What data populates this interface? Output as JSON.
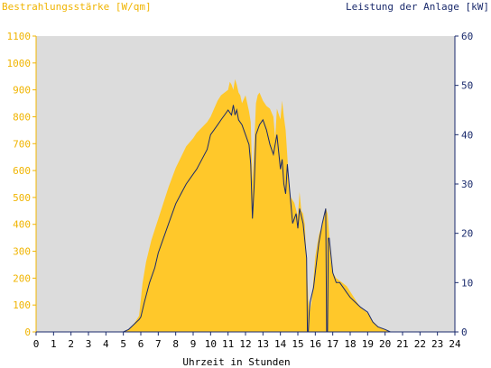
{
  "chart_data": {
    "type": "area",
    "title_left": "Bestrahlungsstärke [W/qm]",
    "title_right": "Leistung der Anlage [kW]",
    "xlabel": "Uhrzeit in Stunden",
    "xlim": [
      0,
      24
    ],
    "x_ticks": [
      0,
      1,
      2,
      3,
      4,
      5,
      6,
      7,
      8,
      9,
      10,
      11,
      12,
      13,
      14,
      15,
      16,
      17,
      18,
      19,
      20,
      21,
      22,
      23,
      24
    ],
    "ylim_left": [
      0,
      1100
    ],
    "y_ticks_left": [
      0,
      100,
      200,
      300,
      400,
      500,
      600,
      700,
      800,
      900,
      1000,
      1100
    ],
    "ylim_right": [
      0,
      60
    ],
    "y_ticks_right": [
      0,
      10,
      20,
      30,
      40,
      50,
      60
    ],
    "grid": false,
    "colors": {
      "plot_bg": "#dcdcdc",
      "irradiance_fill": "#ffc82a",
      "power_line": "#1a2a6c",
      "left_axis": "#f0b400",
      "right_axis": "#1a2a6c",
      "x_axis": "#1a2a6c"
    },
    "series": [
      {
        "axis": "left",
        "kind": "area",
        "x": [
          0,
          5.0,
          5.3,
          5.6,
          5.9,
          6.0,
          6.1,
          6.3,
          6.6,
          7.0,
          7.3,
          7.6,
          8.0,
          8.3,
          8.6,
          9.0,
          9.2,
          9.5,
          9.8,
          10.0,
          10.2,
          10.4,
          10.6,
          10.8,
          11.0,
          11.1,
          11.2,
          11.3,
          11.4,
          11.5,
          11.6,
          11.7,
          11.8,
          12.0,
          12.2,
          12.3,
          12.4,
          12.5,
          12.6,
          12.7,
          12.8,
          13.0,
          13.2,
          13.4,
          13.6,
          13.7,
          13.8,
          14.0,
          14.1,
          14.2,
          14.3,
          14.4,
          14.5,
          14.6,
          14.8,
          15.0,
          15.1,
          15.2,
          15.3,
          15.4,
          15.5,
          15.6,
          15.7,
          15.8,
          15.9,
          16.0,
          16.2,
          16.4,
          16.6,
          16.7,
          16.8,
          16.9,
          17.0,
          17.2,
          17.4,
          17.6,
          17.8,
          18.0,
          18.3,
          18.6,
          19.0,
          19.3,
          19.6,
          20.0,
          20.3,
          24
        ],
        "values": [
          0,
          0,
          10,
          30,
          60,
          120,
          180,
          260,
          340,
          420,
          480,
          540,
          610,
          650,
          690,
          720,
          740,
          760,
          780,
          800,
          830,
          860,
          880,
          890,
          900,
          930,
          920,
          900,
          940,
          920,
          890,
          880,
          850,
          880,
          820,
          780,
          560,
          700,
          850,
          880,
          890,
          860,
          840,
          830,
          800,
          720,
          830,
          790,
          860,
          800,
          750,
          650,
          550,
          500,
          480,
          430,
          520,
          450,
          440,
          400,
          260,
          120,
          80,
          120,
          200,
          280,
          360,
          400,
          460,
          440,
          360,
          260,
          220,
          200,
          190,
          180,
          170,
          150,
          120,
          90,
          70,
          40,
          20,
          8,
          0,
          0
        ]
      },
      {
        "axis": "right",
        "kind": "line",
        "x": [
          0,
          5.0,
          5.3,
          5.6,
          5.9,
          6.0,
          6.2,
          6.5,
          6.8,
          7.0,
          7.3,
          7.6,
          8.0,
          8.3,
          8.6,
          9.0,
          9.2,
          9.5,
          9.8,
          10.0,
          10.2,
          10.4,
          10.6,
          10.8,
          11.0,
          11.2,
          11.3,
          11.4,
          11.5,
          11.6,
          11.8,
          12.0,
          12.2,
          12.3,
          12.4,
          12.5,
          12.6,
          12.8,
          13.0,
          13.2,
          13.4,
          13.6,
          13.8,
          14.0,
          14.1,
          14.2,
          14.3,
          14.4,
          14.5,
          14.7,
          14.9,
          15.0,
          15.1,
          15.3,
          15.5,
          15.55,
          15.6,
          15.65,
          15.7,
          15.9,
          16.0,
          16.2,
          16.4,
          16.6,
          16.65,
          16.7,
          16.75,
          16.8,
          17.0,
          17.2,
          17.4,
          17.6,
          17.8,
          18.0,
          18.3,
          18.6,
          19.0,
          19.3,
          19.6,
          20.0,
          20.3,
          24
        ],
        "values": [
          0,
          0,
          0.5,
          1.5,
          2.5,
          3,
          6,
          10,
          13,
          16,
          19,
          22,
          26,
          28,
          30,
          32,
          33,
          35,
          37,
          40,
          41,
          42,
          43,
          44,
          45,
          44,
          46,
          44,
          45,
          43,
          42,
          40,
          38,
          34,
          23,
          30,
          40,
          42,
          43,
          41,
          38,
          36,
          40,
          33,
          35,
          30,
          28,
          34,
          30,
          22,
          24,
          21,
          25,
          22,
          15,
          0,
          0,
          4,
          6,
          9,
          12,
          18,
          22,
          25,
          0,
          0,
          19,
          19,
          12,
          10,
          10,
          9,
          8,
          7,
          6,
          5,
          4,
          2,
          1,
          0.5,
          0,
          0
        ]
      }
    ]
  }
}
